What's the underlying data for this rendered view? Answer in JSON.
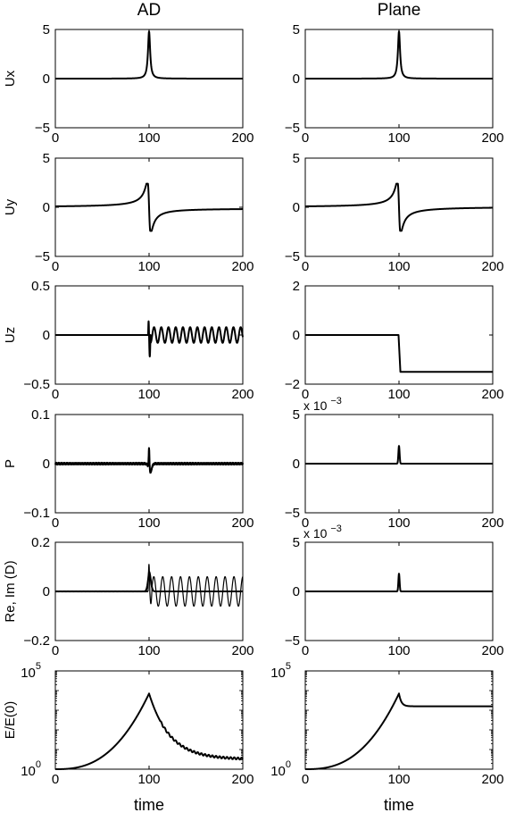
{
  "column_titles": [
    "AD",
    "Plane"
  ],
  "chart_data": [
    {
      "type": "line",
      "column": "AD",
      "ylabel": "Ux",
      "xlim": [
        0,
        200
      ],
      "ylim": [
        -5,
        5
      ],
      "xticks": [
        "0",
        "100",
        "200"
      ],
      "yticks": [
        "5",
        "0",
        "−5"
      ],
      "yscale": "linear",
      "series": [
        {
          "model": "spike",
          "amp": 4.8,
          "width": 1.4
        }
      ]
    },
    {
      "type": "line",
      "column": "Plane",
      "ylabel": "",
      "xlim": [
        0,
        200
      ],
      "ylim": [
        -5,
        5
      ],
      "xticks": [
        "0",
        "100",
        "200"
      ],
      "yticks": [
        "5",
        "0",
        "−5"
      ],
      "yscale": "linear",
      "series": [
        {
          "model": "spike",
          "amp": 4.8,
          "width": 1.4
        }
      ]
    },
    {
      "type": "line",
      "column": "AD",
      "ylabel": "Uy",
      "xlim": [
        0,
        200
      ],
      "ylim": [
        -5,
        5
      ],
      "xticks": [
        "0",
        "100",
        "200"
      ],
      "yticks": [
        "5",
        "0",
        "−5"
      ],
      "yscale": "linear",
      "series": [
        {
          "model": "dispersive",
          "amp": 2.4,
          "width": 1.8,
          "tail": -0.1
        }
      ]
    },
    {
      "type": "line",
      "column": "Plane",
      "ylabel": "",
      "xlim": [
        0,
        200
      ],
      "ylim": [
        -5,
        5
      ],
      "xticks": [
        "0",
        "100",
        "200"
      ],
      "yticks": [
        "5",
        "0",
        "−5"
      ],
      "yscale": "linear",
      "series": [
        {
          "model": "dispersive",
          "amp": 2.4,
          "width": 1.8,
          "tail": 0.05
        }
      ]
    },
    {
      "type": "line",
      "column": "AD",
      "ylabel": "Uz",
      "xlim": [
        0,
        200
      ],
      "ylim": [
        -0.5,
        0.5
      ],
      "xticks": [
        "0",
        "100",
        "200"
      ],
      "yticks": [
        "0.5",
        "0",
        "−0.5"
      ],
      "yscale": "linear",
      "series": [
        {
          "model": "osc",
          "amp": 0.08,
          "period": 7.7,
          "pre": 0.14,
          "post": -0.22
        }
      ]
    },
    {
      "type": "line",
      "column": "Plane",
      "ylabel": "",
      "xlim": [
        0,
        200
      ],
      "ylim": [
        -2,
        2
      ],
      "xticks": [
        "0",
        "100",
        "200"
      ],
      "yticks": [
        "2",
        "0",
        "−2"
      ],
      "yscale": "linear",
      "series": [
        {
          "model": "step",
          "level": -1.5
        }
      ]
    },
    {
      "type": "line",
      "column": "AD",
      "ylabel": "P",
      "xlim": [
        0,
        200
      ],
      "ylim": [
        -0.1,
        0.1
      ],
      "xticks": [
        "0",
        "100",
        "200"
      ],
      "yticks": [
        "0.1",
        "0",
        "−0.1"
      ],
      "yscale": "linear",
      "series": [
        {
          "model": "pulse_noise",
          "amp": 0.045,
          "dip": -0.018,
          "noise": 0.002
        }
      ]
    },
    {
      "type": "line",
      "column": "Plane",
      "ylabel": "",
      "xlim": [
        0,
        200
      ],
      "ylim": [
        -5,
        5
      ],
      "multiplier": "x 10",
      "multiplier_exponent": "−3",
      "xticks": [
        "0",
        "100",
        "200"
      ],
      "yticks": [
        "5",
        "0",
        "−5"
      ],
      "yscale": "linear",
      "series": [
        {
          "model": "narrow_pulse",
          "amp": 1.8
        }
      ]
    },
    {
      "type": "line",
      "column": "AD",
      "ylabel": "Re, Im (D)",
      "xlim": [
        0,
        200
      ],
      "ylim": [
        -0.2,
        0.2
      ],
      "xticks": [
        "0",
        "100",
        "200"
      ],
      "yticks": [
        "0.2",
        "0",
        "−0.2"
      ],
      "yscale": "linear",
      "series": [
        {
          "model": "osc_re",
          "amp": 0.06,
          "period": 9.5,
          "peak": 0.11,
          "dip": -0.05
        },
        {
          "model": "pulse_im",
          "amp": 0.08
        }
      ]
    },
    {
      "type": "line",
      "column": "Plane",
      "ylabel": "",
      "xlim": [
        0,
        200
      ],
      "ylim": [
        -5,
        5
      ],
      "multiplier": "x 10",
      "multiplier_exponent": "−3",
      "xticks": [
        "0",
        "100",
        "200"
      ],
      "yticks": [
        "5",
        "0",
        "−5"
      ],
      "yscale": "linear",
      "series": [
        {
          "model": "narrow_pulse",
          "amp": 1.8
        }
      ]
    },
    {
      "type": "line",
      "column": "AD",
      "ylabel": "E/E(0)",
      "xlabel": "time",
      "xlim": [
        0,
        200
      ],
      "ylim": [
        0,
        5
      ],
      "xticks": [
        "0",
        "100",
        "200"
      ],
      "yscale": "log",
      "ytick_labels": [
        {
          "base": "10",
          "exp": "5",
          "log": 5
        },
        {
          "base": "10",
          "exp": "0",
          "log": 0
        }
      ],
      "series": [
        {
          "model": "energy_decay",
          "peak": 3.85,
          "final": 0.5
        }
      ]
    },
    {
      "type": "line",
      "column": "Plane",
      "ylabel": "",
      "xlabel": "time",
      "xlim": [
        0,
        200
      ],
      "ylim": [
        0,
        5
      ],
      "xticks": [
        "0",
        "100",
        "200"
      ],
      "yscale": "log",
      "ytick_labels": [
        {
          "base": "10",
          "exp": "5",
          "log": 5
        },
        {
          "base": "10",
          "exp": "0",
          "log": 0
        }
      ],
      "series": [
        {
          "model": "energy_plateau",
          "peak": 3.85,
          "final": 3.2
        }
      ]
    }
  ]
}
